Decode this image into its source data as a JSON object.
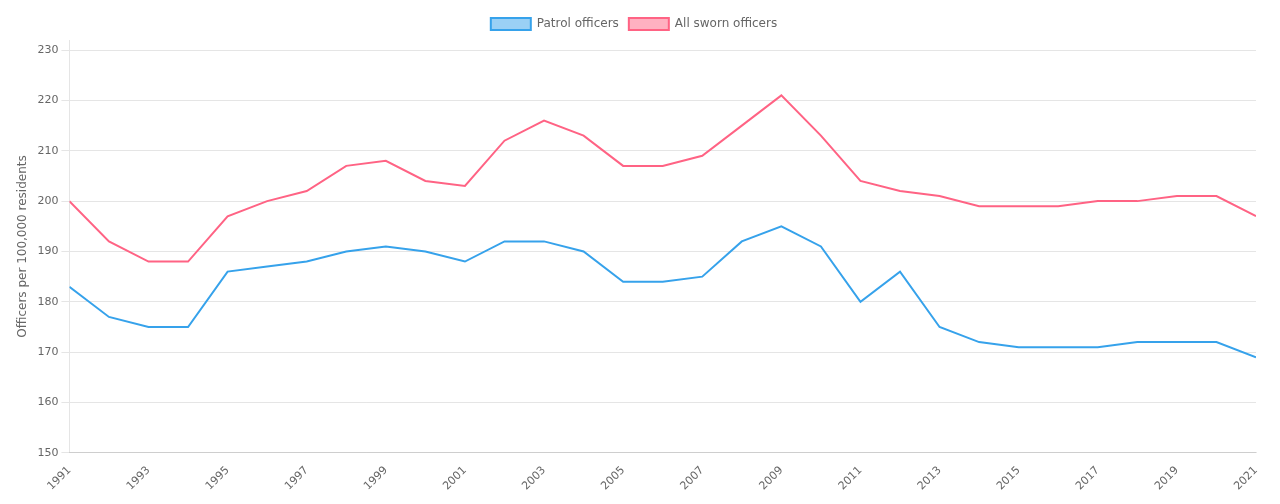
{
  "chart_data": {
    "type": "line",
    "x": [
      1991,
      1992,
      1993,
      1994,
      1995,
      1996,
      1997,
      1998,
      1999,
      2000,
      2001,
      2002,
      2003,
      2004,
      2005,
      2006,
      2007,
      2008,
      2009,
      2010,
      2011,
      2012,
      2013,
      2014,
      2015,
      2016,
      2017,
      2018,
      2019,
      2020,
      2021
    ],
    "series": [
      {
        "name": "Patrol officers",
        "values": [
          183,
          177,
          175,
          175,
          186,
          187,
          188,
          190,
          191,
          190,
          188,
          192,
          192,
          190,
          184,
          184,
          185,
          192,
          195,
          191,
          180,
          186,
          175,
          172,
          171,
          171,
          171,
          172,
          172,
          172,
          169
        ]
      },
      {
        "name": "All sworn officers",
        "values": [
          200,
          192,
          188,
          188,
          197,
          200,
          202,
          207,
          208,
          204,
          203,
          212,
          216,
          213,
          207,
          207,
          209,
          215,
          221,
          213,
          204,
          202,
          201,
          199,
          199,
          199,
          200,
          200,
          201,
          201,
          197
        ]
      }
    ],
    "ylabel": "Officers per 100,000 residents",
    "xlim": [
      1991,
      2021
    ],
    "xticks": [
      1991,
      1993,
      1995,
      1997,
      1999,
      2001,
      2003,
      2005,
      2007,
      2009,
      2011,
      2013,
      2015,
      2017,
      2019,
      2021
    ],
    "ylim": [
      150,
      232
    ],
    "yticks": [
      150,
      160,
      170,
      180,
      190,
      200,
      210,
      220,
      230
    ],
    "grid": true,
    "legend": "top"
  }
}
